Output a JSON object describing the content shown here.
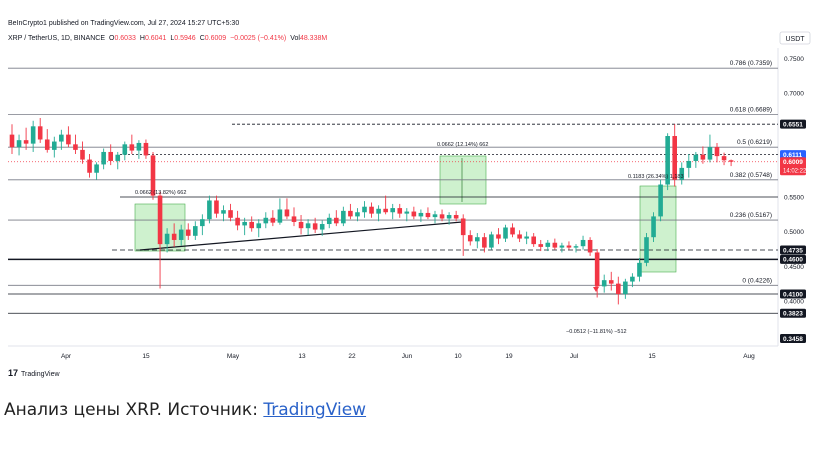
{
  "header": {
    "published": "BeInCrypto1 published on TradingView.com, Jul 27, 2024 15:27 UTC+5:30",
    "symbol": "XRP / TetherUS, 1D, BINANCE",
    "o_label": "O",
    "o_value": "0.6033",
    "h_label": "H",
    "h_value": "0.6041",
    "l_label": "L",
    "l_value": "0.5946",
    "c_label": "C",
    "c_value": "0.6009",
    "change": "−0.0025 (−0.41%)",
    "vol_label": "Vol",
    "vol_value": "48.338M"
  },
  "currency_label": "USDT",
  "watermark": "TradingView",
  "caption": {
    "text": "Анализ цены XRP. Источник: ",
    "link": "TradingView"
  },
  "colors": {
    "up": "#22ab94",
    "down": "#f23645",
    "fib_line": "#787b86",
    "accent": "#2962ff",
    "measure_fill": "#a5e6a5"
  },
  "chart_data": {
    "type": "candlestick",
    "x_tick_labels": [
      "Apr",
      "15",
      "May",
      "13",
      "22",
      "Jun",
      "10",
      "19",
      "Jul",
      "15",
      "Aug"
    ],
    "y_tick_labels": [
      "0.7500",
      "0.7000",
      "0.5500",
      "0.5000",
      "0.4500",
      "0.4000"
    ],
    "ylim": [
      0.335,
      0.765
    ],
    "price_labels": [
      {
        "value": 0.6551,
        "text": "0.6551",
        "style": "dark"
      },
      {
        "value": 0.6111,
        "text": "0.6111",
        "style": "blue"
      },
      {
        "value": 0.6009,
        "text": "0.6009",
        "style": "red",
        "sub": "14:02:22"
      },
      {
        "value": 0.4735,
        "text": "0.4735",
        "style": "dark"
      },
      {
        "value": 0.46,
        "text": "0.4600",
        "style": "dark"
      },
      {
        "value": 0.41,
        "text": "0.4100",
        "style": "dark"
      },
      {
        "value": 0.3823,
        "text": "0.3823",
        "style": "dark"
      },
      {
        "value": 0.3458,
        "text": "0.3458",
        "style": "dark"
      }
    ],
    "fib_levels": [
      {
        "label": "0.786 (0.7359)",
        "value": 0.7359
      },
      {
        "label": "0.618 (0.6689)",
        "value": 0.6689
      },
      {
        "label": "0.5 (0.6219)",
        "value": 0.6219
      },
      {
        "label": "0.382 (0.5748)",
        "value": 0.5748
      },
      {
        "label": "0.236 (0.5167)",
        "value": 0.5167
      },
      {
        "label": "0 (0.4226)",
        "value": 0.4226
      }
    ],
    "measurements": [
      {
        "text": "0.0662 (13.82%) 662"
      },
      {
        "text": "0.0662 (12.14%) 662"
      },
      {
        "text": "0.1183 (26.34%) 1,183"
      },
      {
        "text": "−0.0512 (−11.81%) −512"
      }
    ],
    "candles": [
      [
        0.64,
        0.655,
        0.612,
        0.622
      ],
      [
        0.622,
        0.64,
        0.61,
        0.632
      ],
      [
        0.632,
        0.65,
        0.618,
        0.627
      ],
      [
        0.627,
        0.66,
        0.615,
        0.652
      ],
      [
        0.652,
        0.664,
        0.628,
        0.633
      ],
      [
        0.633,
        0.648,
        0.614,
        0.618
      ],
      [
        0.618,
        0.637,
        0.607,
        0.63
      ],
      [
        0.63,
        0.647,
        0.618,
        0.64
      ],
      [
        0.64,
        0.652,
        0.622,
        0.626
      ],
      [
        0.626,
        0.64,
        0.612,
        0.618
      ],
      [
        0.618,
        0.63,
        0.598,
        0.604
      ],
      [
        0.604,
        0.612,
        0.578,
        0.585
      ],
      [
        0.585,
        0.6,
        0.575,
        0.597
      ],
      [
        0.597,
        0.62,
        0.59,
        0.615
      ],
      [
        0.615,
        0.626,
        0.596,
        0.602
      ],
      [
        0.602,
        0.615,
        0.59,
        0.611
      ],
      [
        0.611,
        0.63,
        0.603,
        0.626
      ],
      [
        0.626,
        0.64,
        0.612,
        0.617
      ],
      [
        0.617,
        0.632,
        0.605,
        0.628
      ],
      [
        0.628,
        0.633,
        0.605,
        0.61
      ],
      [
        0.61,
        0.615,
        0.546,
        0.552
      ],
      [
        0.552,
        0.558,
        0.418,
        0.482
      ],
      [
        0.482,
        0.505,
        0.47,
        0.497
      ],
      [
        0.497,
        0.512,
        0.478,
        0.488
      ],
      [
        0.488,
        0.51,
        0.48,
        0.503
      ],
      [
        0.503,
        0.512,
        0.488,
        0.494
      ],
      [
        0.494,
        0.515,
        0.488,
        0.508
      ],
      [
        0.508,
        0.525,
        0.495,
        0.518
      ],
      [
        0.518,
        0.552,
        0.512,
        0.545
      ],
      [
        0.545,
        0.552,
        0.52,
        0.526
      ],
      [
        0.526,
        0.538,
        0.515,
        0.531
      ],
      [
        0.531,
        0.54,
        0.515,
        0.52
      ],
      [
        0.52,
        0.53,
        0.502,
        0.509
      ],
      [
        0.509,
        0.52,
        0.495,
        0.514
      ],
      [
        0.514,
        0.522,
        0.5,
        0.505
      ],
      [
        0.505,
        0.518,
        0.492,
        0.512
      ],
      [
        0.512,
        0.528,
        0.505,
        0.52
      ],
      [
        0.52,
        0.531,
        0.508,
        0.513
      ],
      [
        0.513,
        0.548,
        0.51,
        0.532
      ],
      [
        0.532,
        0.548,
        0.518,
        0.522
      ],
      [
        0.522,
        0.535,
        0.508,
        0.514
      ],
      [
        0.514,
        0.524,
        0.496,
        0.505
      ],
      [
        0.505,
        0.518,
        0.495,
        0.512
      ],
      [
        0.512,
        0.52,
        0.498,
        0.503
      ],
      [
        0.503,
        0.516,
        0.494,
        0.511
      ],
      [
        0.511,
        0.526,
        0.505,
        0.52
      ],
      [
        0.52,
        0.531,
        0.508,
        0.512
      ],
      [
        0.512,
        0.536,
        0.508,
        0.53
      ],
      [
        0.53,
        0.54,
        0.518,
        0.522
      ],
      [
        0.522,
        0.534,
        0.515,
        0.528
      ],
      [
        0.528,
        0.544,
        0.52,
        0.536
      ],
      [
        0.536,
        0.542,
        0.52,
        0.526
      ],
      [
        0.526,
        0.538,
        0.515,
        0.533
      ],
      [
        0.533,
        0.552,
        0.525,
        0.528
      ],
      [
        0.528,
        0.54,
        0.518,
        0.534
      ],
      [
        0.534,
        0.54,
        0.52,
        0.526
      ],
      [
        0.526,
        0.534,
        0.515,
        0.529
      ],
      [
        0.529,
        0.536,
        0.518,
        0.522
      ],
      [
        0.522,
        0.532,
        0.514,
        0.527
      ],
      [
        0.527,
        0.535,
        0.518,
        0.521
      ],
      [
        0.521,
        0.53,
        0.512,
        0.525
      ],
      [
        0.525,
        0.532,
        0.515,
        0.519
      ],
      [
        0.519,
        0.528,
        0.51,
        0.524
      ],
      [
        0.524,
        0.53,
        0.515,
        0.519
      ],
      [
        0.519,
        0.525,
        0.465,
        0.495
      ],
      [
        0.495,
        0.502,
        0.48,
        0.486
      ],
      [
        0.486,
        0.498,
        0.476,
        0.492
      ],
      [
        0.492,
        0.498,
        0.47,
        0.477
      ],
      [
        0.477,
        0.5,
        0.474,
        0.496
      ],
      [
        0.496,
        0.505,
        0.482,
        0.49
      ],
      [
        0.49,
        0.51,
        0.485,
        0.506
      ],
      [
        0.506,
        0.512,
        0.492,
        0.496
      ],
      [
        0.496,
        0.502,
        0.485,
        0.49
      ],
      [
        0.49,
        0.5,
        0.482,
        0.493
      ],
      [
        0.493,
        0.498,
        0.478,
        0.482
      ],
      [
        0.482,
        0.488,
        0.472,
        0.478
      ],
      [
        0.478,
        0.488,
        0.472,
        0.484
      ],
      [
        0.484,
        0.49,
        0.474,
        0.477
      ],
      [
        0.477,
        0.484,
        0.47,
        0.48
      ],
      [
        0.48,
        0.486,
        0.474,
        0.477
      ],
      [
        0.477,
        0.482,
        0.47,
        0.479
      ],
      [
        0.479,
        0.494,
        0.474,
        0.488
      ],
      [
        0.488,
        0.492,
        0.465,
        0.47
      ],
      [
        0.47,
        0.475,
        0.405,
        0.421
      ],
      [
        0.421,
        0.438,
        0.412,
        0.43
      ],
      [
        0.43,
        0.442,
        0.415,
        0.425
      ],
      [
        0.425,
        0.435,
        0.395,
        0.41
      ],
      [
        0.41,
        0.432,
        0.403,
        0.428
      ],
      [
        0.428,
        0.44,
        0.42,
        0.435
      ],
      [
        0.435,
        0.462,
        0.428,
        0.455
      ],
      [
        0.455,
        0.498,
        0.45,
        0.492
      ],
      [
        0.492,
        0.528,
        0.485,
        0.522
      ],
      [
        0.522,
        0.575,
        0.515,
        0.568
      ],
      [
        0.568,
        0.642,
        0.56,
        0.638
      ],
      [
        0.638,
        0.655,
        0.565,
        0.575
      ],
      [
        0.575,
        0.6,
        0.568,
        0.592
      ],
      [
        0.592,
        0.612,
        0.578,
        0.602
      ],
      [
        0.602,
        0.615,
        0.592,
        0.611
      ],
      [
        0.611,
        0.623,
        0.598,
        0.604
      ],
      [
        0.604,
        0.64,
        0.6,
        0.622
      ],
      [
        0.622,
        0.628,
        0.6,
        0.609
      ],
      [
        0.609,
        0.614,
        0.596,
        0.603
      ],
      [
        0.603,
        0.604,
        0.5946,
        0.6009
      ]
    ]
  }
}
